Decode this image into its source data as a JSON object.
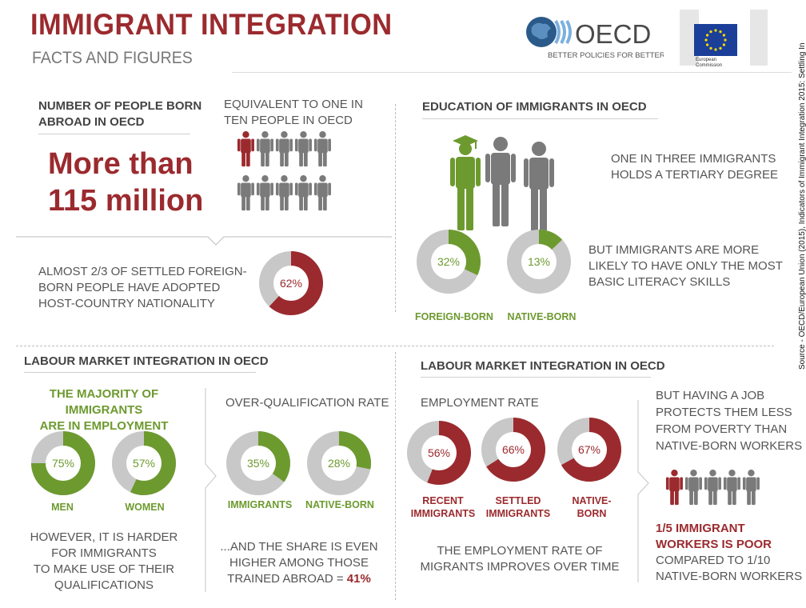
{
  "header": {
    "title": "IMMIGRANT INTEGRATION",
    "subtitle": "FACTS AND FIGURES",
    "oecd_name": "OECD",
    "oecd_tagline": "BETTER POLICIES FOR BETTER LIVES",
    "ec_name_1": "European",
    "ec_name_2": "Commission"
  },
  "source": "Source - OECD/European Union (2015), Indicators of Immigrant Integration 2015: Settling In",
  "people": {
    "heading_1": "NUMBER OF PEOPLE BORN",
    "heading_2": "ABROAD IN OECD",
    "equiv_1": "EQUIVALENT TO ONE IN",
    "equiv_2": "TEN PEOPLE IN OECD",
    "big_1": "More than",
    "big_2": "115 million",
    "nat_1": "ALMOST 2/3 OF SETTLED FOREIGN-",
    "nat_2": "BORN PEOPLE HAVE ADOPTED",
    "nat_3": "HOST-COUNTRY NATIONALITY"
  },
  "education": {
    "heading": "EDUCATION OF IMMIGRANTS IN OECD",
    "tertiary_1": "ONE IN THREE IMMIGRANTS",
    "tertiary_2": "HOLDS A TERTIARY DEGREE",
    "literacy_1": "BUT IMMIGRANTS ARE MORE",
    "literacy_2": "LIKELY TO HAVE ONLY THE MOST",
    "literacy_3": "BASIC LITERACY SKILLS"
  },
  "labour_left": {
    "heading": "LABOUR MARKET INTEGRATION IN OECD",
    "majority_1": "THE MAJORITY OF IMMIGRANTS",
    "majority_2": "ARE IN EMPLOYMENT",
    "overq_heading": "OVER-QUALIFICATION  RATE",
    "harder_1": "HOWEVER, IT IS HARDER",
    "harder_2": "FOR IMMIGRANTS",
    "harder_3": "TO MAKE USE OF THEIR",
    "harder_4": "QUALIFICATIONS",
    "share_1": "...AND THE SHARE IS EVEN",
    "share_2": "HIGHER AMONG THOSE",
    "share_3": "TRAINED ABROAD = ",
    "share_value": "41%"
  },
  "labour_right": {
    "heading": "LABOUR MARKET INTEGRATION IN OECD",
    "emp_heading": "EMPLOYMENT RATE",
    "improves_1": "THE EMPLOYMENT RATE OF",
    "improves_2": "MIGRANTS IMPROVES OVER TIME",
    "job_1": "BUT HAVING A JOB",
    "job_2": "PROTECTS THEM LESS",
    "job_3": "FROM POVERTY THAN",
    "job_4": "NATIVE-BORN WORKERS",
    "poor_1": "1/5 IMMIGRANT",
    "poor_2": "WORKERS IS POOR",
    "poor_3": "COMPARED TO 1/10",
    "poor_4": "NATIVE-BORN WORKERS"
  },
  "colors": {
    "red": "#9b2a2e",
    "green": "#6d9a2f",
    "grey": "#c8c8c8",
    "dark_grey": "#7a7a7a"
  },
  "chart_data": [
    {
      "type": "pie",
      "id": "nationality",
      "values": [
        62
      ],
      "labels": [
        "62%"
      ],
      "color": "red"
    },
    {
      "type": "pie",
      "id": "tertiary",
      "categories": [
        "FOREIGN-BORN",
        "NATIVE-BORN"
      ],
      "values": [
        32,
        13
      ],
      "labels": [
        "32%",
        "13%"
      ],
      "color": "green"
    },
    {
      "type": "pie",
      "id": "employment_gender",
      "categories": [
        "MEN",
        "WOMEN"
      ],
      "values": [
        75,
        57
      ],
      "labels": [
        "75%",
        "57%"
      ],
      "color": "green"
    },
    {
      "type": "pie",
      "id": "overqualification",
      "categories": [
        "IMMIGRANTS",
        "NATIVE-BORN"
      ],
      "values": [
        35,
        28
      ],
      "labels": [
        "35%",
        "28%"
      ],
      "color": "green"
    },
    {
      "type": "pie",
      "id": "employment_rate",
      "categories": [
        "RECENT IMMIGRANTS",
        "SETTLED IMMIGRANTS",
        "NATIVE-BORN"
      ],
      "values": [
        56,
        66,
        67
      ],
      "labels": [
        "56%",
        "66%",
        "67%"
      ],
      "color": "red"
    },
    {
      "type": "pictogram",
      "id": "one_in_ten",
      "total": 10,
      "highlighted": 1
    },
    {
      "type": "pictogram",
      "id": "one_in_five",
      "total": 5,
      "highlighted": 1
    }
  ]
}
